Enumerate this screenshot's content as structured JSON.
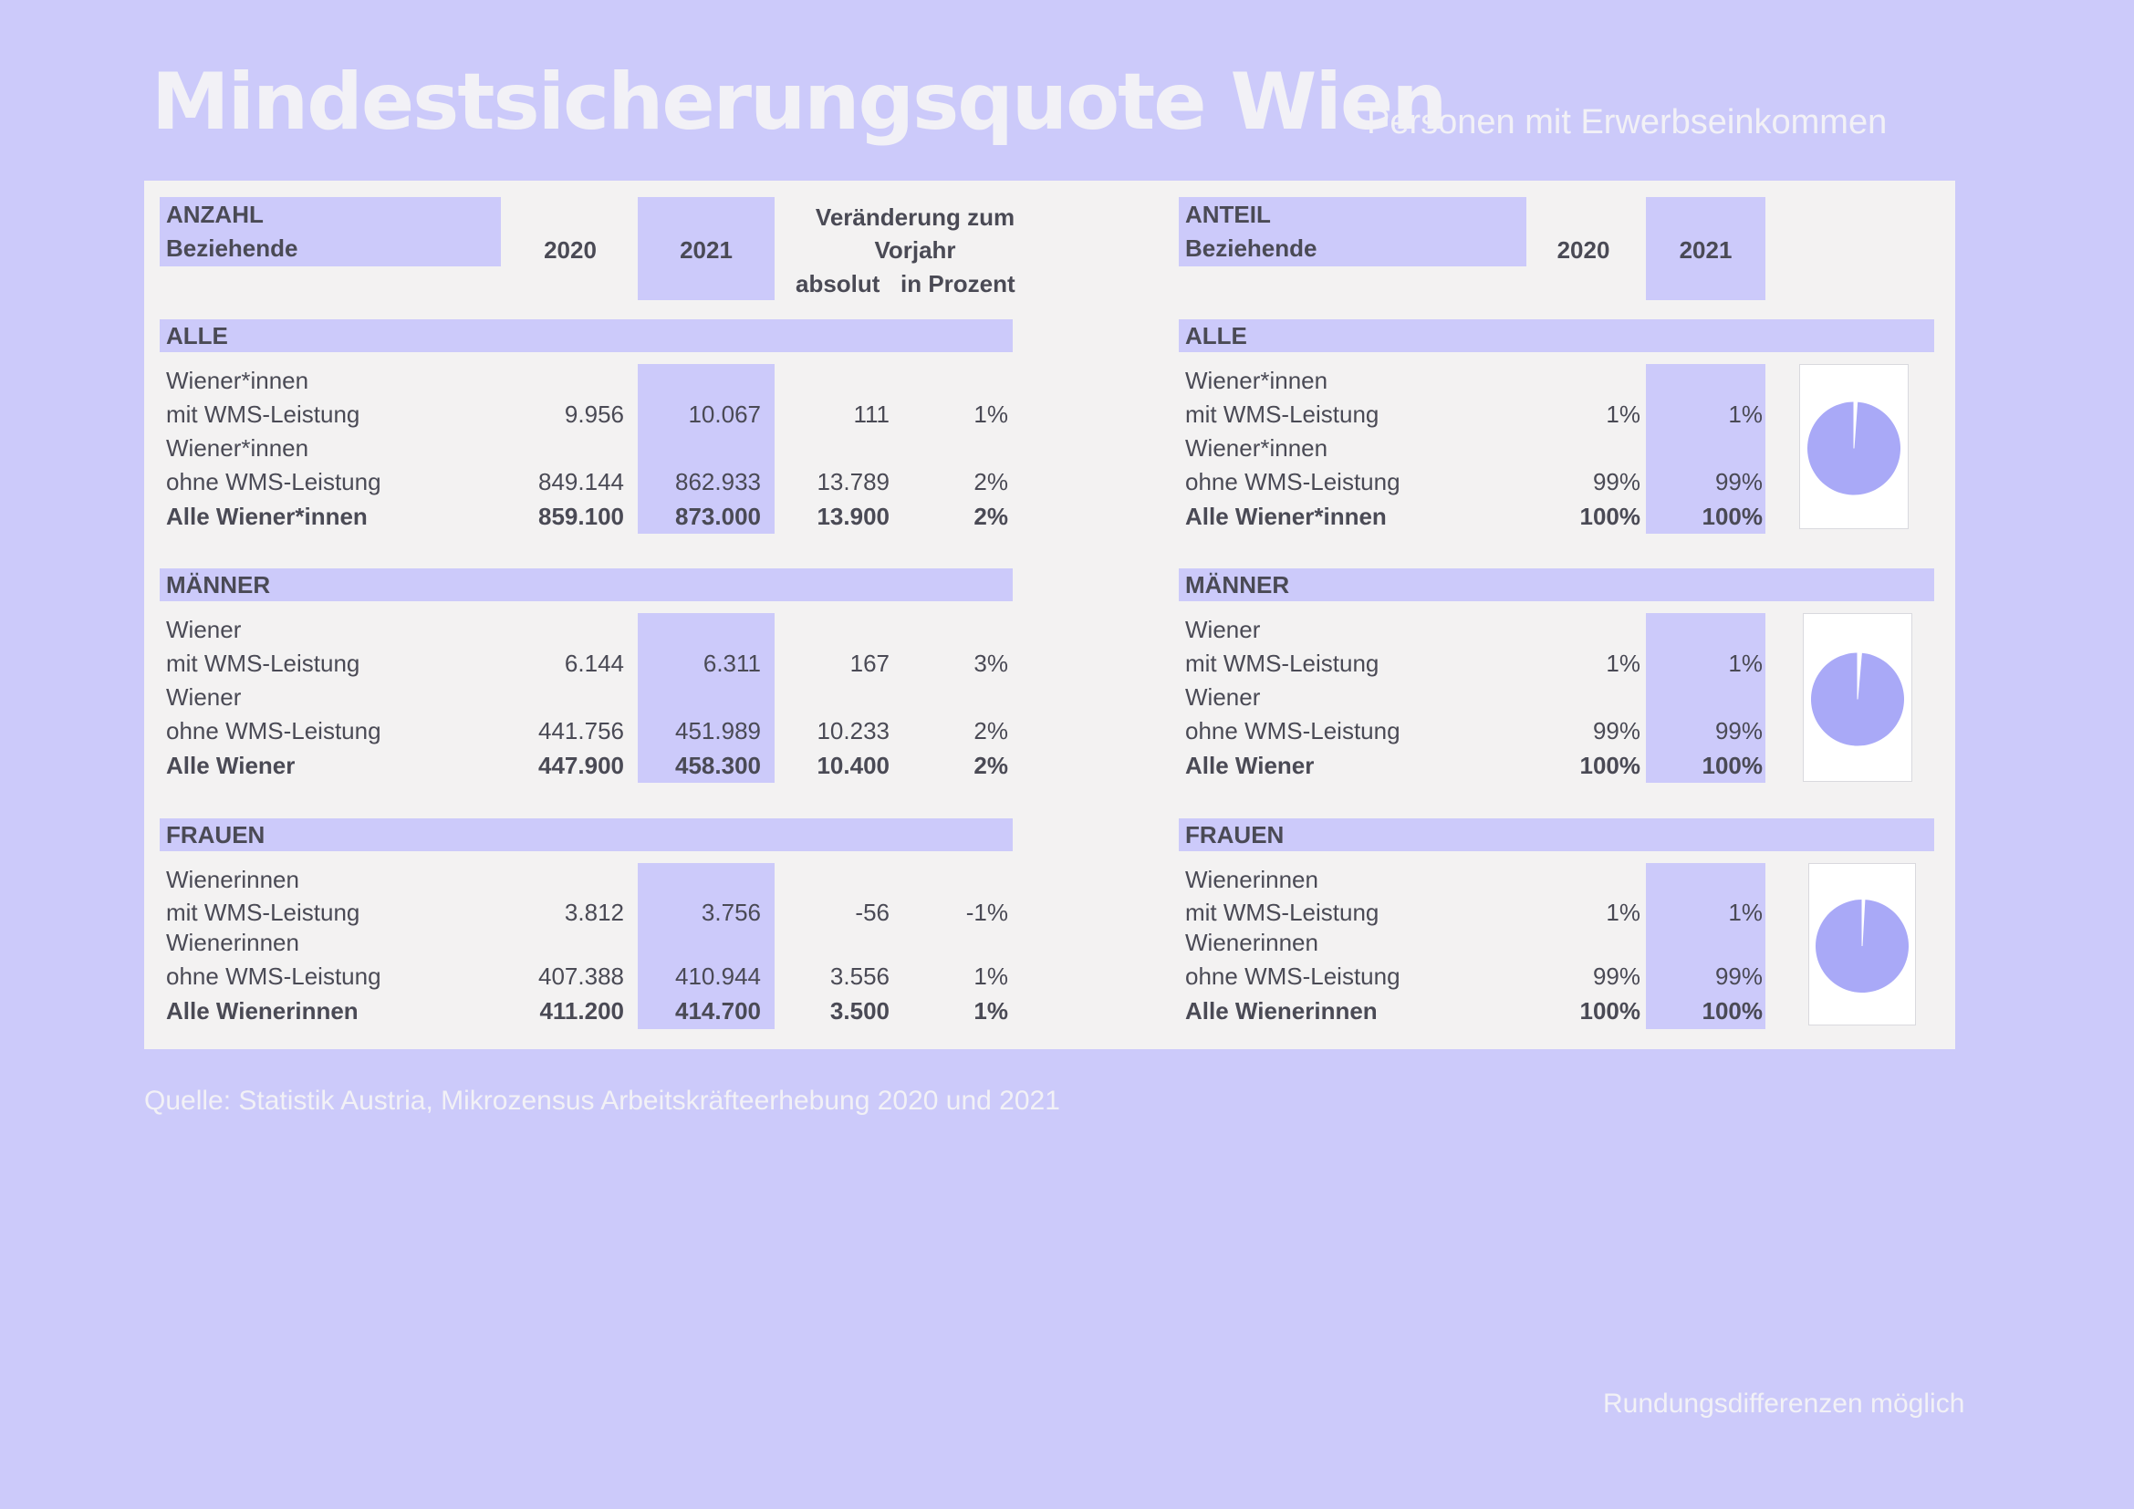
{
  "header": {
    "title": "Mindestsicherungsquote Wien",
    "subtitle": "Personen mit Erwerbseinkommen"
  },
  "left_table": {
    "head_label_1": "ANZAHL",
    "head_label_2": "Beziehende",
    "col_2020": "2020",
    "col_2021": "2021",
    "change_1": "Veränderung zum",
    "change_2": "Vorjahr",
    "col_abs": "absolut",
    "col_pct": "in Prozent"
  },
  "right_table": {
    "head_label_1": "ANTEIL",
    "head_label_2": "Beziehende",
    "col_2020": "2020",
    "col_2021": "2021"
  },
  "sections": [
    {
      "name": "ALLE",
      "rows": [
        {
          "l1": "Wiener*innen",
          "l2": "mit WMS-Leistung",
          "v2020": "9.956",
          "v2021": "10.067",
          "abs": "111",
          "pct": "1%",
          "s2020": "1%",
          "s2021": "1%"
        },
        {
          "l1": "Wiener*innen",
          "l2": "ohne WMS-Leistung",
          "v2020": "849.144",
          "v2021": "862.933",
          "abs": "13.789",
          "pct": "2%",
          "s2020": "99%",
          "s2021": "99%"
        },
        {
          "l2": "Alle Wiener*innen",
          "v2020": "859.100",
          "v2021": "873.000",
          "abs": "13.900",
          "pct": "2%",
          "s2020": "100%",
          "s2021": "100%"
        }
      ]
    },
    {
      "name": "MÄNNER",
      "rows": [
        {
          "l1": "Wiener",
          "l2": "mit WMS-Leistung",
          "v2020": "6.144",
          "v2021": "6.311",
          "abs": "167",
          "pct": "3%",
          "s2020": "1%",
          "s2021": "1%"
        },
        {
          "l1": "Wiener",
          "l2": "ohne WMS-Leistung",
          "v2020": "441.756",
          "v2021": "451.989",
          "abs": "10.233",
          "pct": "2%",
          "s2020": "99%",
          "s2021": "99%"
        },
        {
          "l2": "Alle Wiener",
          "v2020": "447.900",
          "v2021": "458.300",
          "abs": "10.400",
          "pct": "2%",
          "s2020": "100%",
          "s2021": "100%"
        }
      ]
    },
    {
      "name": "FRAUEN",
      "rows": [
        {
          "l1": "Wienerinnen",
          "l2": "mit WMS-Leistung",
          "v2020": "3.812",
          "v2021": "3.756",
          "abs": "-56",
          "pct": "-1%",
          "s2020": "1%",
          "s2021": "1%"
        },
        {
          "l1": "Wienerinnen",
          "l2": "ohne WMS-Leistung",
          "v2020": "407.388",
          "v2021": "410.944",
          "abs": "3.556",
          "pct": "1%",
          "s2020": "99%",
          "s2021": "99%"
        },
        {
          "l2": "Alle Wienerinnen",
          "v2020": "411.200",
          "v2021": "414.700",
          "abs": "3.500",
          "pct": "1%",
          "s2020": "100%",
          "s2021": "100%"
        }
      ]
    }
  ],
  "pies": [
    {
      "name": "ALLE",
      "share_with": 1.153,
      "color": "#a9a9f7"
    },
    {
      "name": "MÄNNER",
      "share_with": 1.377,
      "color": "#a9a9f7"
    },
    {
      "name": "FRAUEN",
      "share_with": 0.906,
      "color": "#a9a9f7"
    }
  ],
  "footer": {
    "source": "Quelle: Statistik Austria, Mikrozensus  Arbeitskräfteerhebung 2020 und 2021",
    "note": "Rundungsdifferenzen möglich"
  }
}
